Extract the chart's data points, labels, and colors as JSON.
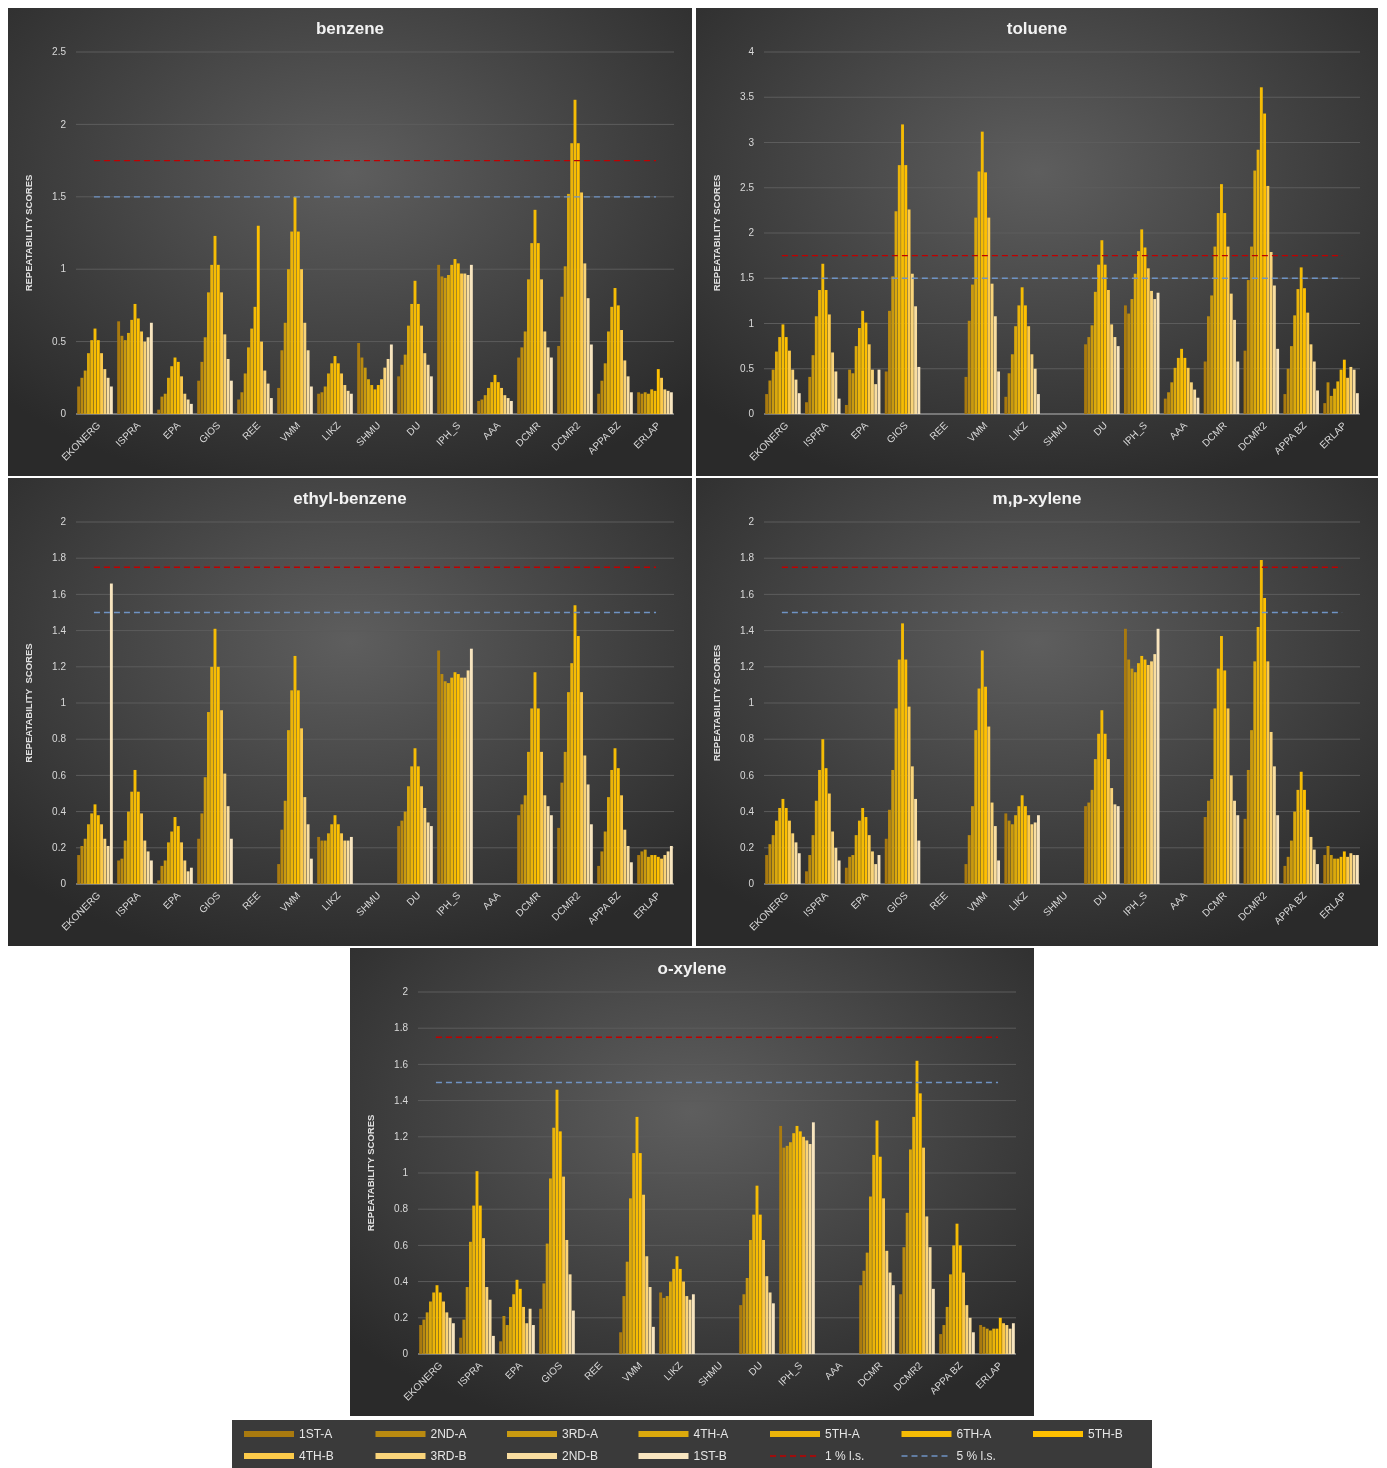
{
  "chart_data": [
    {
      "type": "bar",
      "title": "benzene",
      "ylabel": "REPEATABILITY SCORES",
      "categories": [
        "EKONERG",
        "ISPRA",
        "EPA",
        "GIOS",
        "REE",
        "VMM",
        "LIKZ",
        "SHMU",
        "DU",
        "IPH_S",
        "AAA",
        "DCMR",
        "DCMR2",
        "APPA BZ",
        "ERLAP"
      ],
      "ylim": [
        0,
        2.5
      ],
      "yticks": [
        0,
        0.5,
        1,
        1.5,
        2,
        2.5
      ],
      "grid": "y",
      "series": [
        {
          "color": "#a97a0f",
          "values": [
            0.19,
            0.64,
            0.03,
            0.23,
            0.1,
            0.18,
            0.14,
            0.49,
            0.26,
            1.03,
            0.09,
            0.39,
            0.47,
            0.14,
            0.15
          ]
        },
        {
          "color": "#b98a10",
          "values": [
            0.25,
            0.54,
            0.12,
            0.36,
            0.15,
            0.44,
            0.15,
            0.39,
            0.34,
            0.95,
            0.1,
            0.46,
            0.81,
            0.23,
            0.14
          ]
        },
        {
          "color": "#c99a10",
          "values": [
            0.3,
            0.51,
            0.14,
            0.53,
            0.28,
            0.63,
            0.19,
            0.32,
            0.41,
            0.94,
            0.13,
            0.57,
            1.02,
            0.35,
            0.15
          ]
        },
        {
          "color": "#dba90c",
          "values": [
            0.42,
            0.56,
            0.25,
            0.84,
            0.46,
            1.0,
            0.28,
            0.24,
            0.61,
            0.96,
            0.18,
            0.93,
            1.52,
            0.57,
            0.14
          ]
        },
        {
          "color": "#ebb40a",
          "values": [
            0.51,
            0.65,
            0.33,
            1.03,
            0.59,
            1.26,
            0.35,
            0.2,
            0.76,
            1.03,
            0.22,
            1.18,
            1.87,
            0.74,
            0.17
          ]
        },
        {
          "color": "#f5bc05",
          "values": [
            0.59,
            0.76,
            0.39,
            1.23,
            0.74,
            1.5,
            0.4,
            0.17,
            0.92,
            1.07,
            0.27,
            1.41,
            2.17,
            0.87,
            0.16
          ]
        },
        {
          "color": "#ffc000",
          "values": [
            0.51,
            0.66,
            0.36,
            1.03,
            1.3,
            1.26,
            0.35,
            0.2,
            0.76,
            1.04,
            0.22,
            1.18,
            1.87,
            0.75,
            0.31
          ]
        },
        {
          "color": "#fcca4a",
          "values": [
            0.42,
            0.57,
            0.26,
            0.84,
            0.5,
            1.0,
            0.28,
            0.24,
            0.61,
            0.97,
            0.18,
            0.93,
            1.53,
            0.58,
            0.25
          ]
        },
        {
          "color": "#f9d47a",
          "values": [
            0.31,
            0.5,
            0.14,
            0.55,
            0.3,
            0.63,
            0.2,
            0.32,
            0.42,
            0.97,
            0.13,
            0.57,
            1.04,
            0.37,
            0.17
          ]
        },
        {
          "color": "#f8dda0",
          "values": [
            0.25,
            0.53,
            0.1,
            0.38,
            0.21,
            0.44,
            0.16,
            0.38,
            0.34,
            0.96,
            0.11,
            0.46,
            0.8,
            0.26,
            0.16
          ]
        },
        {
          "color": "#f8e5bf",
          "values": [
            0.19,
            0.63,
            0.07,
            0.23,
            0.11,
            0.19,
            0.14,
            0.48,
            0.26,
            1.03,
            0.09,
            0.39,
            0.48,
            0.15,
            0.15
          ]
        }
      ],
      "ref_lines": [
        {
          "axis": "y",
          "value": 1.75,
          "color": "#c00000",
          "line_style": "dashed"
        },
        {
          "axis": "y",
          "value": 1.5,
          "color": "#6f93c4",
          "line_style": "dashed"
        }
      ]
    },
    {
      "type": "bar",
      "title": "toluene",
      "ylabel": "REPEATABILITY SCORES",
      "categories": [
        "EKONERG",
        "ISPRA",
        "EPA",
        "GIOS",
        "REE",
        "VMM",
        "LIKZ",
        "SHMU",
        "DU",
        "IPH_S",
        "AAA",
        "DCMR",
        "DCMR2",
        "APPA BZ",
        "ERLAP"
      ],
      "ylim": [
        0,
        4
      ],
      "yticks": [
        0,
        0.5,
        1,
        1.5,
        2,
        2.5,
        3,
        3.5,
        4
      ],
      "grid": "y",
      "series": [
        {
          "color": "#a97a0f",
          "values": [
            0.22,
            0.13,
            0.1,
            0.47,
            null,
            0.41,
            0.19,
            null,
            0.77,
            1.2,
            0.17,
            0.58,
            0.7,
            0.22,
            0.12
          ]
        },
        {
          "color": "#b98a10",
          "values": [
            0.37,
            0.41,
            0.49,
            1.14,
            null,
            1.03,
            0.45,
            null,
            0.85,
            1.11,
            0.24,
            1.08,
            1.48,
            0.5,
            0.35
          ]
        },
        {
          "color": "#c99a10",
          "values": [
            0.49,
            0.65,
            0.45,
            1.52,
            null,
            1.43,
            0.66,
            null,
            0.98,
            1.27,
            0.35,
            1.31,
            1.85,
            0.75,
            0.2
          ]
        },
        {
          "color": "#dba90c",
          "values": [
            0.69,
            1.08,
            0.75,
            2.24,
            null,
            2.17,
            0.97,
            null,
            1.35,
            1.55,
            0.51,
            1.85,
            2.69,
            1.09,
            0.28
          ]
        },
        {
          "color": "#ebb40a",
          "values": [
            0.85,
            1.37,
            0.95,
            2.75,
            null,
            2.68,
            1.2,
            null,
            1.65,
            1.8,
            0.62,
            2.22,
            2.92,
            1.38,
            0.36
          ]
        },
        {
          "color": "#f5bc05",
          "values": [
            0.99,
            1.66,
            1.14,
            3.2,
            null,
            3.12,
            1.4,
            null,
            1.92,
            2.04,
            0.72,
            2.54,
            3.61,
            1.62,
            0.49
          ]
        },
        {
          "color": "#ffc000",
          "values": [
            0.85,
            1.37,
            1.01,
            2.75,
            null,
            2.67,
            1.2,
            null,
            1.65,
            1.84,
            0.62,
            2.22,
            3.32,
            1.39,
            0.6
          ]
        },
        {
          "color": "#fcca4a",
          "values": [
            0.7,
            1.1,
            0.77,
            2.26,
            null,
            2.17,
            0.97,
            null,
            1.37,
            1.61,
            0.51,
            1.85,
            2.52,
            1.12,
            0.4
          ]
        },
        {
          "color": "#f9d47a",
          "values": [
            0.49,
            0.68,
            0.49,
            1.55,
            null,
            1.44,
            0.66,
            null,
            0.99,
            1.36,
            0.35,
            1.33,
            1.79,
            0.77,
            0.52
          ]
        },
        {
          "color": "#f8dda0",
          "values": [
            0.38,
            0.47,
            0.33,
            1.19,
            null,
            1.08,
            0.5,
            null,
            0.85,
            1.27,
            0.27,
            1.04,
            1.42,
            0.58,
            0.49
          ]
        },
        {
          "color": "#f8e5bf",
          "values": [
            0.23,
            0.17,
            0.49,
            0.52,
            null,
            0.47,
            0.22,
            null,
            0.75,
            1.34,
            0.18,
            0.58,
            0.72,
            0.26,
            0.23
          ]
        }
      ],
      "ref_lines": [
        {
          "axis": "y",
          "value": 1.75,
          "color": "#c00000",
          "line_style": "dashed"
        },
        {
          "axis": "y",
          "value": 1.5,
          "color": "#6f93c4",
          "line_style": "dashed"
        }
      ]
    },
    {
      "type": "bar",
      "title": "ethyl-benzene",
      "ylabel": "REPEATABILITY  SCORES",
      "categories": [
        "EKONERG",
        "ISPRA",
        "EPA",
        "GIOS",
        "REE",
        "VMM",
        "LIKZ",
        "SHMU",
        "DU",
        "IPH_S",
        "AAA",
        "DCMR",
        "DCMR2",
        "APPA BZ",
        "ERLAP"
      ],
      "ylim": [
        0,
        2
      ],
      "yticks": [
        0,
        0.2,
        0.4,
        0.6,
        0.8,
        1,
        1.2,
        1.4,
        1.6,
        1.8,
        2
      ],
      "grid": "y",
      "series": [
        {
          "color": "#a97a0f",
          "values": [
            0.16,
            0.13,
            0.02,
            0.25,
            null,
            0.11,
            0.26,
            null,
            0.32,
            1.29,
            null,
            0.38,
            0.31,
            0.1,
            0.16
          ]
        },
        {
          "color": "#b98a10",
          "values": [
            0.21,
            0.14,
            0.1,
            0.39,
            null,
            0.3,
            0.24,
            null,
            0.35,
            1.16,
            null,
            0.44,
            0.56,
            0.18,
            0.18
          ]
        },
        {
          "color": "#c99a10",
          "values": [
            0.25,
            0.24,
            0.13,
            0.59,
            null,
            0.46,
            0.24,
            null,
            0.4,
            1.12,
            null,
            0.49,
            0.73,
            0.29,
            0.19
          ]
        },
        {
          "color": "#dba90c",
          "values": [
            0.33,
            0.4,
            0.23,
            0.95,
            null,
            0.85,
            0.28,
            null,
            0.54,
            1.11,
            null,
            0.73,
            1.06,
            0.48,
            0.15
          ]
        },
        {
          "color": "#ebb40a",
          "values": [
            0.39,
            0.51,
            0.29,
            1.2,
            null,
            1.07,
            0.33,
            null,
            0.65,
            1.14,
            null,
            0.97,
            1.22,
            0.63,
            0.16
          ]
        },
        {
          "color": "#f5bc05",
          "values": [
            0.44,
            0.63,
            0.37,
            1.41,
            null,
            1.26,
            0.38,
            null,
            0.75,
            1.17,
            null,
            1.17,
            1.54,
            0.75,
            0.16
          ]
        },
        {
          "color": "#ffc000",
          "values": [
            0.38,
            0.51,
            0.32,
            1.2,
            null,
            1.07,
            0.33,
            null,
            0.65,
            1.16,
            null,
            0.97,
            1.37,
            0.64,
            0.15
          ]
        },
        {
          "color": "#fcca4a",
          "values": [
            0.33,
            0.39,
            0.23,
            0.96,
            null,
            0.86,
            0.28,
            null,
            0.54,
            1.14,
            null,
            0.73,
            1.06,
            0.49,
            0.14
          ]
        },
        {
          "color": "#f9d47a",
          "values": [
            0.25,
            0.24,
            0.13,
            0.61,
            null,
            0.48,
            0.24,
            null,
            0.42,
            1.14,
            null,
            0.49,
            0.71,
            0.3,
            0.16
          ]
        },
        {
          "color": "#f8dda0",
          "values": [
            0.21,
            0.18,
            0.07,
            0.43,
            null,
            0.33,
            0.24,
            null,
            0.34,
            1.18,
            null,
            0.43,
            0.55,
            0.21,
            0.18
          ]
        },
        {
          "color": "#f8e5bf",
          "values": [
            1.66,
            0.13,
            0.09,
            0.25,
            null,
            0.14,
            0.26,
            null,
            0.32,
            1.3,
            null,
            0.38,
            0.33,
            0.12,
            0.21
          ]
        }
      ],
      "ref_lines": [
        {
          "axis": "y",
          "value": 1.75,
          "color": "#c00000",
          "line_style": "dashed"
        },
        {
          "axis": "y",
          "value": 1.5,
          "color": "#6f93c4",
          "line_style": "dashed"
        }
      ]
    },
    {
      "type": "bar",
      "title": "m,p-xylene",
      "ylabel": "REPEATABILITY SCORES",
      "categories": [
        "EKONERG",
        "ISPRA",
        "EPA",
        "GIOS",
        "REE",
        "VMM",
        "LIKZ",
        "SHMU",
        "DU",
        "IPH_S",
        "AAA",
        "DCMR",
        "DCMR2",
        "APPA BZ",
        "ERLAP"
      ],
      "ylim": [
        0,
        2
      ],
      "yticks": [
        0,
        0.2,
        0.4,
        0.6,
        0.8,
        1,
        1.2,
        1.4,
        1.6,
        1.8,
        2
      ],
      "grid": "y",
      "series": [
        {
          "color": "#a97a0f",
          "values": [
            0.16,
            0.07,
            0.09,
            0.25,
            null,
            0.11,
            0.39,
            null,
            0.43,
            1.41,
            null,
            0.37,
            0.36,
            0.1,
            0.16
          ]
        },
        {
          "color": "#b98a10",
          "values": [
            0.22,
            0.16,
            0.15,
            0.41,
            null,
            0.27,
            0.35,
            null,
            0.45,
            1.24,
            null,
            0.46,
            0.63,
            0.15,
            0.21
          ]
        },
        {
          "color": "#c99a10",
          "values": [
            0.27,
            0.27,
            0.16,
            0.63,
            null,
            0.43,
            0.33,
            null,
            0.52,
            1.19,
            null,
            0.58,
            0.85,
            0.24,
            0.16
          ]
        },
        {
          "color": "#dba90c",
          "values": [
            0.35,
            0.46,
            0.27,
            0.97,
            null,
            0.85,
            0.38,
            null,
            0.69,
            1.17,
            null,
            0.97,
            1.23,
            0.4,
            0.14
          ]
        },
        {
          "color": "#ebb40a",
          "values": [
            0.42,
            0.63,
            0.35,
            1.24,
            null,
            1.08,
            0.43,
            null,
            0.83,
            1.22,
            null,
            1.19,
            1.42,
            0.52,
            0.14
          ]
        },
        {
          "color": "#f5bc05",
          "values": [
            0.47,
            0.8,
            0.42,
            1.44,
            null,
            1.29,
            0.49,
            null,
            0.96,
            1.26,
            null,
            1.37,
            1.79,
            0.62,
            0.15
          ]
        },
        {
          "color": "#ffc000",
          "values": [
            0.42,
            0.64,
            0.37,
            1.24,
            null,
            1.09,
            0.43,
            null,
            0.83,
            1.24,
            null,
            1.18,
            1.58,
            0.52,
            0.18
          ]
        },
        {
          "color": "#fcca4a",
          "values": [
            0.35,
            0.5,
            0.27,
            0.98,
            null,
            0.87,
            0.38,
            null,
            0.69,
            1.21,
            null,
            0.97,
            1.23,
            0.41,
            0.15
          ]
        },
        {
          "color": "#f9d47a",
          "values": [
            0.28,
            0.29,
            0.18,
            0.65,
            null,
            0.45,
            0.33,
            null,
            0.53,
            1.23,
            null,
            0.6,
            0.84,
            0.26,
            0.17
          ]
        },
        {
          "color": "#f8dda0",
          "values": [
            0.23,
            0.2,
            0.11,
            0.47,
            null,
            0.32,
            0.34,
            null,
            0.44,
            1.27,
            null,
            0.46,
            0.65,
            0.19,
            0.16
          ]
        },
        {
          "color": "#f8e5bf",
          "values": [
            0.17,
            0.13,
            0.16,
            0.24,
            null,
            0.13,
            0.38,
            null,
            0.43,
            1.41,
            null,
            0.38,
            0.38,
            0.11,
            0.16
          ]
        }
      ],
      "ref_lines": [
        {
          "axis": "y",
          "value": 1.75,
          "color": "#c00000",
          "line_style": "dashed"
        },
        {
          "axis": "y",
          "value": 1.5,
          "color": "#6f93c4",
          "line_style": "dashed"
        }
      ]
    },
    {
      "type": "bar",
      "title": "o-xylene",
      "ylabel": "REPEATABILITY SCORES",
      "categories": [
        "EKONERG",
        "ISPRA",
        "EPA",
        "GIOS",
        "REE",
        "VMM",
        "LIKZ",
        "SHMU",
        "DU",
        "IPH_S",
        "AAA",
        "DCMR",
        "DCMR2",
        "APPA BZ",
        "ERLAP"
      ],
      "ylim": [
        0,
        2
      ],
      "yticks": [
        0,
        0.2,
        0.4,
        0.6,
        0.8,
        1,
        1.2,
        1.4,
        1.6,
        1.8,
        2
      ],
      "grid": "y",
      "legend": "bottom",
      "series": [
        {
          "name": "1ST-A",
          "color": "#a97a0f",
          "values": [
            0.16,
            0.09,
            0.07,
            0.25,
            null,
            0.12,
            0.34,
            null,
            0.27,
            1.26,
            null,
            0.38,
            0.33,
            0.11,
            0.16
          ]
        },
        {
          "name": "2ND-A",
          "color": "#b98a10",
          "values": [
            0.19,
            0.19,
            0.21,
            0.39,
            null,
            0.32,
            0.31,
            null,
            0.33,
            1.14,
            null,
            0.46,
            0.59,
            0.16,
            0.15
          ]
        },
        {
          "name": "3RD-A",
          "color": "#c99a10",
          "values": [
            0.23,
            0.37,
            0.16,
            0.61,
            null,
            0.51,
            0.32,
            null,
            0.42,
            1.15,
            null,
            0.56,
            0.78,
            0.26,
            0.14
          ]
        },
        {
          "name": "4TH-A",
          "color": "#dba90c",
          "values": [
            0.29,
            0.62,
            0.26,
            0.97,
            null,
            0.86,
            0.4,
            null,
            0.63,
            1.17,
            null,
            0.87,
            1.13,
            0.44,
            0.13
          ]
        },
        {
          "name": "5TH-A",
          "color": "#ebb40a",
          "values": [
            0.34,
            0.82,
            0.33,
            1.25,
            null,
            1.11,
            0.47,
            null,
            0.77,
            1.22,
            null,
            1.1,
            1.31,
            0.6,
            0.14
          ]
        },
        {
          "name": "6TH-A",
          "color": "#f5bc05",
          "values": [
            0.38,
            1.01,
            0.41,
            1.46,
            null,
            1.31,
            0.54,
            null,
            0.93,
            1.26,
            null,
            1.29,
            1.62,
            0.72,
            0.14
          ]
        },
        {
          "name": "5TH-B",
          "color": "#ffc000",
          "values": [
            0.34,
            0.82,
            0.36,
            1.23,
            null,
            1.11,
            0.47,
            null,
            0.77,
            1.23,
            null,
            1.09,
            1.44,
            0.6,
            0.2
          ]
        },
        {
          "name": "4TH-B",
          "color": "#fcca4a",
          "values": [
            0.29,
            0.64,
            0.26,
            0.98,
            null,
            0.88,
            0.4,
            null,
            0.63,
            1.2,
            null,
            0.86,
            1.14,
            0.45,
            0.17
          ]
        },
        {
          "name": "3RD-B",
          "color": "#f9d47a",
          "values": [
            0.23,
            0.37,
            0.17,
            0.63,
            null,
            0.54,
            0.32,
            null,
            0.43,
            1.18,
            null,
            0.57,
            0.76,
            0.27,
            0.16
          ]
        },
        {
          "name": "2ND-B",
          "color": "#f8dda0",
          "values": [
            0.2,
            0.3,
            0.25,
            0.44,
            null,
            0.37,
            0.3,
            null,
            0.34,
            1.16,
            null,
            0.45,
            0.59,
            0.2,
            0.14
          ]
        },
        {
          "name": "1ST-B",
          "color": "#f8e5bf",
          "values": [
            0.17,
            0.1,
            0.16,
            0.24,
            null,
            0.15,
            0.33,
            null,
            0.28,
            1.28,
            null,
            0.38,
            0.36,
            0.12,
            0.17
          ]
        }
      ],
      "ref_lines": [
        {
          "axis": "y",
          "value": 1.75,
          "label": "1 % l.s.",
          "color": "#c00000",
          "line_style": "dashed"
        },
        {
          "axis": "y",
          "value": 1.5,
          "label": "5 % l.s.",
          "color": "#6f93c4",
          "line_style": "dashed"
        }
      ]
    }
  ]
}
